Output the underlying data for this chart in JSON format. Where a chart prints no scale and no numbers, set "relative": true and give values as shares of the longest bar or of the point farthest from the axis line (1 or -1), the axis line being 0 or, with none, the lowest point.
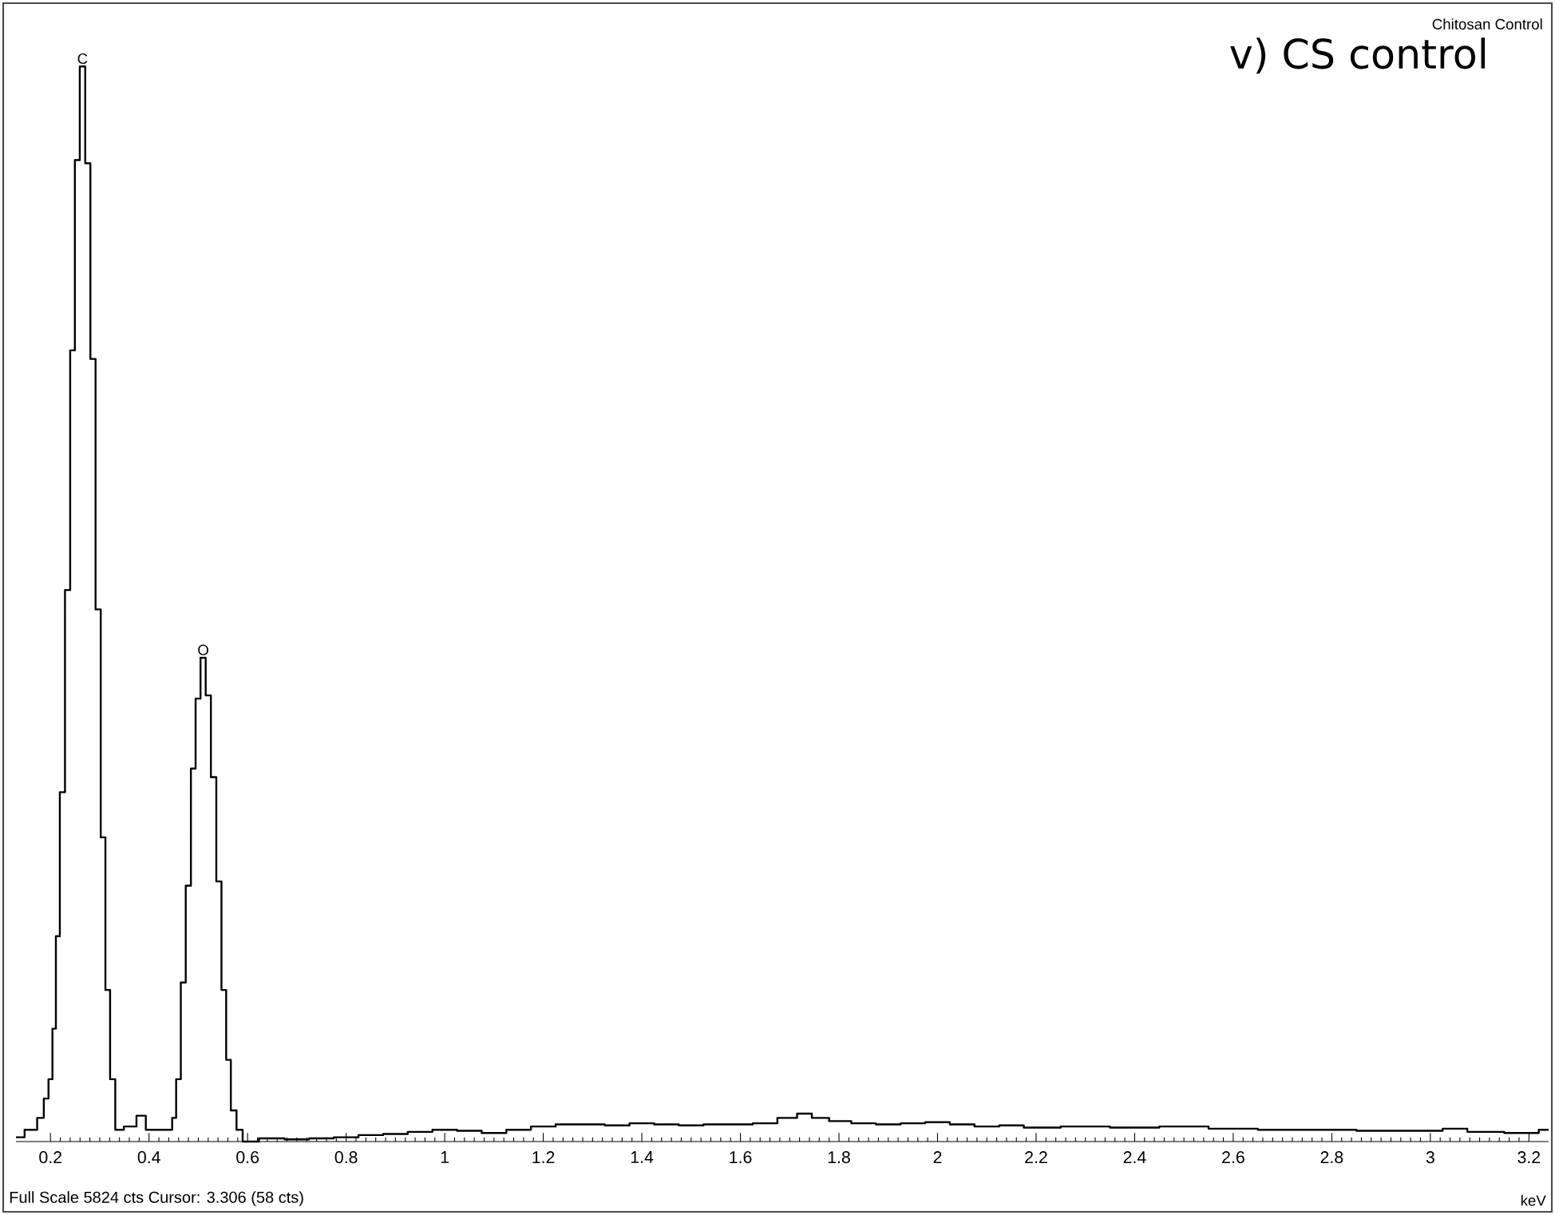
{
  "chart_data": {
    "type": "step",
    "relative": true,
    "xlabel": "keV",
    "annotations": [
      "Chitosan Control",
      "v) CS control",
      "Full Scale 5824 cts Cursor: 3.306  (58 cts)",
      {
        "text": "C",
        "x": 0.265,
        "y": 1
      },
      {
        "text": "O",
        "x": 0.51,
        "y": 0.45
      }
    ],
    "x": [
      0.13,
      0.165,
      0.181,
      0.192,
      0.2,
      0.208,
      0.214,
      0.224,
      0.235,
      0.245,
      0.254,
      0.265,
      0.276,
      0.286,
      0.297,
      0.307,
      0.316,
      0.326,
      0.337,
      0.361,
      0.388,
      0.399,
      0.444,
      0.45,
      0.46,
      0.469,
      0.48,
      0.49,
      0.499,
      0.51,
      0.52,
      0.531,
      0.542,
      0.552,
      0.561,
      0.571,
      0.584,
      0.596,
      0.65,
      0.7,
      0.75,
      0.8,
      0.85,
      0.9,
      0.95,
      1.0,
      1.05,
      1.1,
      1.15,
      1.2,
      1.25,
      1.3,
      1.35,
      1.4,
      1.45,
      1.5,
      1.55,
      1.6,
      1.65,
      1.7,
      1.73,
      1.76,
      1.8,
      1.85,
      1.9,
      1.95,
      2.0,
      2.05,
      2.1,
      2.15,
      2.2,
      2.3,
      2.4,
      2.5,
      2.6,
      2.7,
      2.8,
      2.9,
      3.0,
      3.05,
      3.1,
      3.2,
      3.24
    ],
    "values": [
      0.004,
      0.011,
      0.022,
      0.04,
      0.058,
      0.105,
      0.191,
      0.325,
      0.513,
      0.736,
      0.913,
      1,
      0.91,
      0.728,
      0.495,
      0.283,
      0.141,
      0.058,
      0.011,
      0.014,
      0.024,
      0.011,
      0.011,
      0.022,
      0.058,
      0.148,
      0.238,
      0.347,
      0.412,
      0.45,
      0.415,
      0.339,
      0.242,
      0.141,
      0.076,
      0.029,
      0.011,
      0,
      0.003,
      0.002,
      0.003,
      0.004,
      0.006,
      0.007,
      0.009,
      0.011,
      0.01,
      0.008,
      0.011,
      0.014,
      0.016,
      0.016,
      0.015,
      0.017,
      0.016,
      0.015,
      0.016,
      0.016,
      0.017,
      0.022,
      0.026,
      0.022,
      0.019,
      0.017,
      0.016,
      0.017,
      0.018,
      0.016,
      0.014,
      0.015,
      0.013,
      0.014,
      0.013,
      0.014,
      0.012,
      0.011,
      0.011,
      0.01,
      0.01,
      0.012,
      0.009,
      0.008,
      0.011
    ],
    "color": "#000000",
    "xlim": [
      0.13,
      3.24
    ],
    "xticks": [
      0.2,
      0.4,
      0.6,
      0.8,
      1,
      1.2,
      1.4,
      1.6,
      1.8,
      2,
      2.2,
      2.4,
      2.6,
      2.8,
      3,
      3.2
    ]
  }
}
